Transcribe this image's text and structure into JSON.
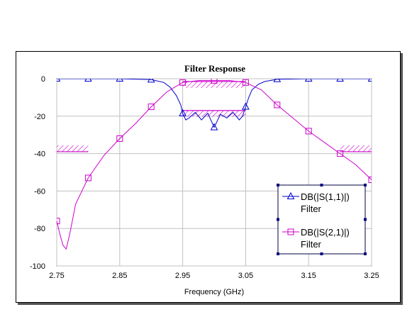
{
  "chart_data": {
    "type": "line",
    "title": "Filter Response",
    "xlabel": "Frequency (GHz)",
    "ylabel": "",
    "xlim": [
      2.75,
      3.25
    ],
    "ylim": [
      -100,
      0
    ],
    "x_ticks": [
      "2.75",
      "2.85",
      "2.95",
      "3.05",
      "3.15",
      "3.25"
    ],
    "y_ticks": [
      "0",
      "-20",
      "-40",
      "-60",
      "-80",
      "-100"
    ],
    "x_tick_values": [
      2.75,
      2.85,
      2.95,
      3.05,
      3.15,
      3.25
    ],
    "y_tick_values": [
      0,
      -20,
      -40,
      -60,
      -80,
      -100
    ],
    "grid": true,
    "legend_position": "bottom-right",
    "series": [
      {
        "name": "DB(|S(1,1)|)",
        "name_line2": "Filter",
        "color": "#0000cc",
        "marker": "triangle",
        "x": [
          2.75,
          2.8,
          2.85,
          2.9,
          2.92,
          2.93,
          2.94,
          2.947,
          2.95,
          2.955,
          2.96,
          2.97,
          2.98,
          2.99,
          3.0,
          3.01,
          3.02,
          3.03,
          3.04,
          3.045,
          3.05,
          3.055,
          3.06,
          3.07,
          3.08,
          3.1,
          3.15,
          3.2,
          3.25
        ],
        "y": [
          0,
          0,
          0,
          -0.5,
          -2,
          -4.5,
          -9,
          -14,
          -18.5,
          -22,
          -21,
          -18,
          -22,
          -18.5,
          -26,
          -19,
          -21,
          -18,
          -22,
          -20,
          -15,
          -10,
          -6,
          -3,
          -1.5,
          -0.3,
          0,
          0,
          0
        ],
        "marker_x": [
          2.75,
          2.8,
          2.85,
          2.9,
          2.95,
          3.0,
          3.05,
          3.1,
          3.15,
          3.2,
          3.25
        ]
      },
      {
        "name": "DB(|S(2,1)|)",
        "name_line2": "Filter",
        "color": "#cc00cc",
        "marker": "square",
        "x": [
          2.75,
          2.755,
          2.76,
          2.765,
          2.77,
          2.78,
          2.8,
          2.825,
          2.85,
          2.875,
          2.9,
          2.925,
          2.95,
          2.975,
          3.0,
          3.025,
          3.05,
          3.075,
          3.1,
          3.125,
          3.15,
          3.175,
          3.2,
          3.225,
          3.25
        ],
        "y": [
          -76,
          -83,
          -89,
          -91,
          -84,
          -67,
          -53,
          -41,
          -32,
          -24,
          -15,
          -7,
          -2,
          -1,
          -1,
          -1,
          -2,
          -6,
          -14,
          -21,
          -28,
          -34,
          -40,
          -46,
          -54
        ],
        "marker_x": [
          2.75,
          2.8,
          2.85,
          2.9,
          2.95,
          3.0,
          3.05,
          3.1,
          3.15,
          3.2,
          3.25
        ]
      }
    ],
    "goal_masks": [
      {
        "x": [
          2.75,
          2.8
        ],
        "y": -39,
        "side": "above"
      },
      {
        "x": [
          2.95,
          3.05
        ],
        "y": -1.5,
        "side": "below"
      },
      {
        "x": [
          2.95,
          3.05
        ],
        "y": -17,
        "side": "below"
      },
      {
        "x": [
          3.2,
          3.25
        ],
        "y": -39,
        "side": "above"
      }
    ]
  }
}
